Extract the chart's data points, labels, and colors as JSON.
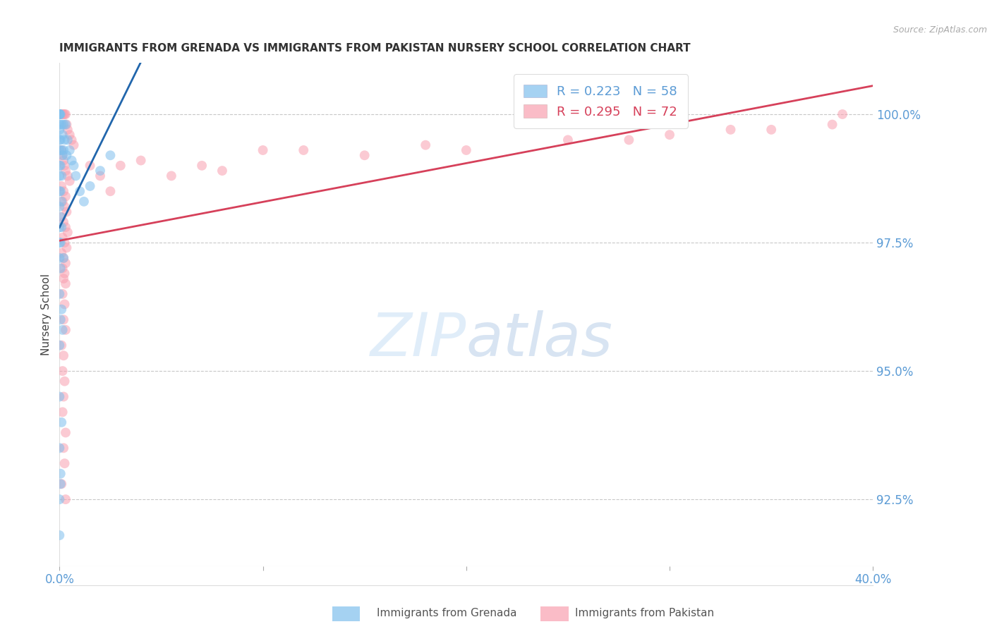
{
  "title": "IMMIGRANTS FROM GRENADA VS IMMIGRANTS FROM PAKISTAN NURSERY SCHOOL CORRELATION CHART",
  "source": "Source: ZipAtlas.com",
  "ylabel": "Nursery School",
  "yticks": [
    92.5,
    95.0,
    97.5,
    100.0
  ],
  "ytick_labels": [
    "92.5%",
    "95.0%",
    "97.5%",
    "100.0%"
  ],
  "xmin": 0.0,
  "xmax": 40.0,
  "ymin": 91.2,
  "ymax": 101.0,
  "grenada_color": "#7fbfed",
  "pakistan_color": "#f9a0b0",
  "grenada_R": 0.223,
  "grenada_N": 58,
  "pakistan_R": 0.295,
  "pakistan_N": 72,
  "grenada_x": [
    0.0,
    0.0,
    0.0,
    0.0,
    0.0,
    0.0,
    0.0,
    0.0,
    0.0,
    0.0,
    0.0,
    0.0,
    0.0,
    0.0,
    0.0,
    0.0,
    0.05,
    0.05,
    0.05,
    0.05,
    0.05,
    0.05,
    0.05,
    0.1,
    0.1,
    0.1,
    0.1,
    0.1,
    0.15,
    0.15,
    0.2,
    0.2,
    0.25,
    0.3,
    0.35,
    0.4,
    0.5,
    0.6,
    0.7,
    0.8,
    1.0,
    1.2,
    1.5,
    2.0,
    2.5,
    0.0,
    0.0,
    0.0,
    0.05,
    0.1,
    0.15,
    0.2,
    0.0,
    0.05,
    0.1,
    0.0,
    0.0,
    0.05
  ],
  "grenada_y": [
    100.0,
    100.0,
    100.0,
    100.0,
    100.0,
    99.8,
    99.7,
    99.5,
    99.3,
    99.0,
    98.8,
    98.5,
    98.2,
    97.8,
    97.5,
    97.2,
    100.0,
    99.5,
    99.0,
    98.5,
    98.0,
    97.5,
    97.0,
    99.8,
    99.3,
    98.8,
    98.3,
    97.8,
    99.6,
    99.2,
    99.8,
    99.3,
    99.5,
    99.8,
    99.2,
    99.5,
    99.3,
    99.1,
    99.0,
    98.8,
    98.5,
    98.3,
    98.6,
    98.9,
    99.2,
    96.5,
    95.5,
    94.5,
    96.0,
    96.2,
    95.8,
    97.2,
    93.5,
    93.0,
    94.0,
    92.5,
    91.8,
    92.8
  ],
  "pakistan_x": [
    0.1,
    0.15,
    0.2,
    0.25,
    0.3,
    0.35,
    0.4,
    0.5,
    0.6,
    0.7,
    0.1,
    0.15,
    0.2,
    0.25,
    0.3,
    0.4,
    0.5,
    0.1,
    0.2,
    0.3,
    0.15,
    0.25,
    0.35,
    0.1,
    0.2,
    0.3,
    0.4,
    0.15,
    0.25,
    0.35,
    0.1,
    0.2,
    0.3,
    0.15,
    0.25,
    0.2,
    0.3,
    0.15,
    0.25,
    0.2,
    0.3,
    0.1,
    0.2,
    0.15,
    0.25,
    0.2,
    0.15,
    0.3,
    0.2,
    0.25,
    1.5,
    2.0,
    2.5,
    3.0,
    4.0,
    5.5,
    7.0,
    8.0,
    10.0,
    12.0,
    15.0,
    18.0,
    20.0,
    25.0,
    28.0,
    30.0,
    33.0,
    35.0,
    38.0,
    38.5,
    0.1,
    0.3
  ],
  "pakistan_y": [
    100.0,
    100.0,
    100.0,
    100.0,
    100.0,
    99.8,
    99.7,
    99.6,
    99.5,
    99.4,
    99.3,
    99.2,
    99.1,
    99.0,
    98.9,
    98.8,
    98.7,
    98.6,
    98.5,
    98.4,
    98.3,
    98.2,
    98.1,
    98.0,
    97.9,
    97.8,
    97.7,
    97.6,
    97.5,
    97.4,
    97.3,
    97.2,
    97.1,
    97.0,
    96.9,
    96.8,
    96.7,
    96.5,
    96.3,
    96.0,
    95.8,
    95.5,
    95.3,
    95.0,
    94.8,
    94.5,
    94.2,
    93.8,
    93.5,
    93.2,
    99.0,
    98.8,
    98.5,
    99.0,
    99.1,
    98.8,
    99.0,
    98.9,
    99.3,
    99.3,
    99.2,
    99.4,
    99.3,
    99.5,
    99.5,
    99.6,
    99.7,
    99.7,
    99.8,
    100.0,
    92.8,
    92.5
  ],
  "grenada_line_color": "#2166ac",
  "pakistan_line_color": "#d6405a",
  "tick_color": "#5b9bd5",
  "grid_color": "#c8c8c8",
  "background_color": "#ffffff",
  "watermark": "ZIPatlas",
  "watermark_zip_color": "#c5dff5",
  "watermark_atlas_color": "#aacce8"
}
